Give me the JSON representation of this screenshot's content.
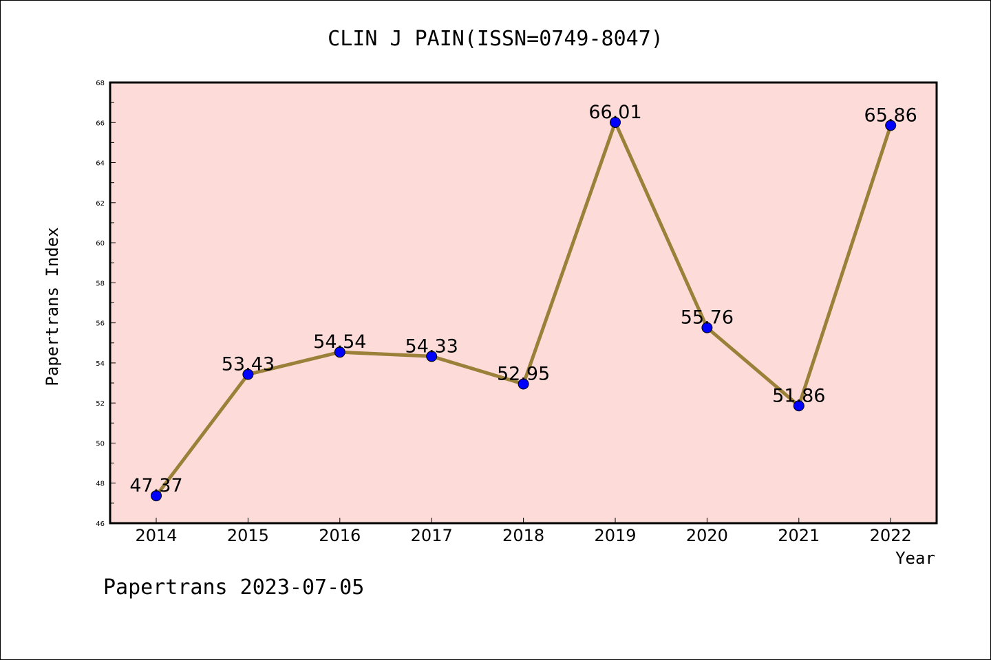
{
  "title": "CLIN J PAIN(ISSN=0749-8047)",
  "footer": "Papertrans 2023-07-05",
  "chart_data": {
    "type": "line",
    "title": "CLIN J PAIN(ISSN=0749-8047)",
    "xlabel": "Year",
    "ylabel": "Papertrans Index",
    "x": [
      "2014",
      "2015",
      "2016",
      "2017",
      "2018",
      "2019",
      "2020",
      "2021",
      "2022"
    ],
    "series": [
      {
        "values": [
          47.37,
          53.43,
          54.54,
          54.33,
          52.95,
          66.01,
          55.76,
          51.86,
          65.86
        ],
        "labels": [
          "47.37",
          "53.43",
          "54.54",
          "54.33",
          "52.95",
          "66.01",
          "55.76",
          "51.86",
          "65.86"
        ]
      }
    ],
    "ylim": [
      46,
      68
    ],
    "yticks": [
      "46",
      "48",
      "50",
      "52",
      "54",
      "56",
      "58",
      "60",
      "62",
      "64",
      "66",
      "68"
    ],
    "grid": false,
    "colors": {
      "plot_background": "#fddbd8",
      "line": "#9a8038",
      "marker": "#0000ff"
    }
  }
}
